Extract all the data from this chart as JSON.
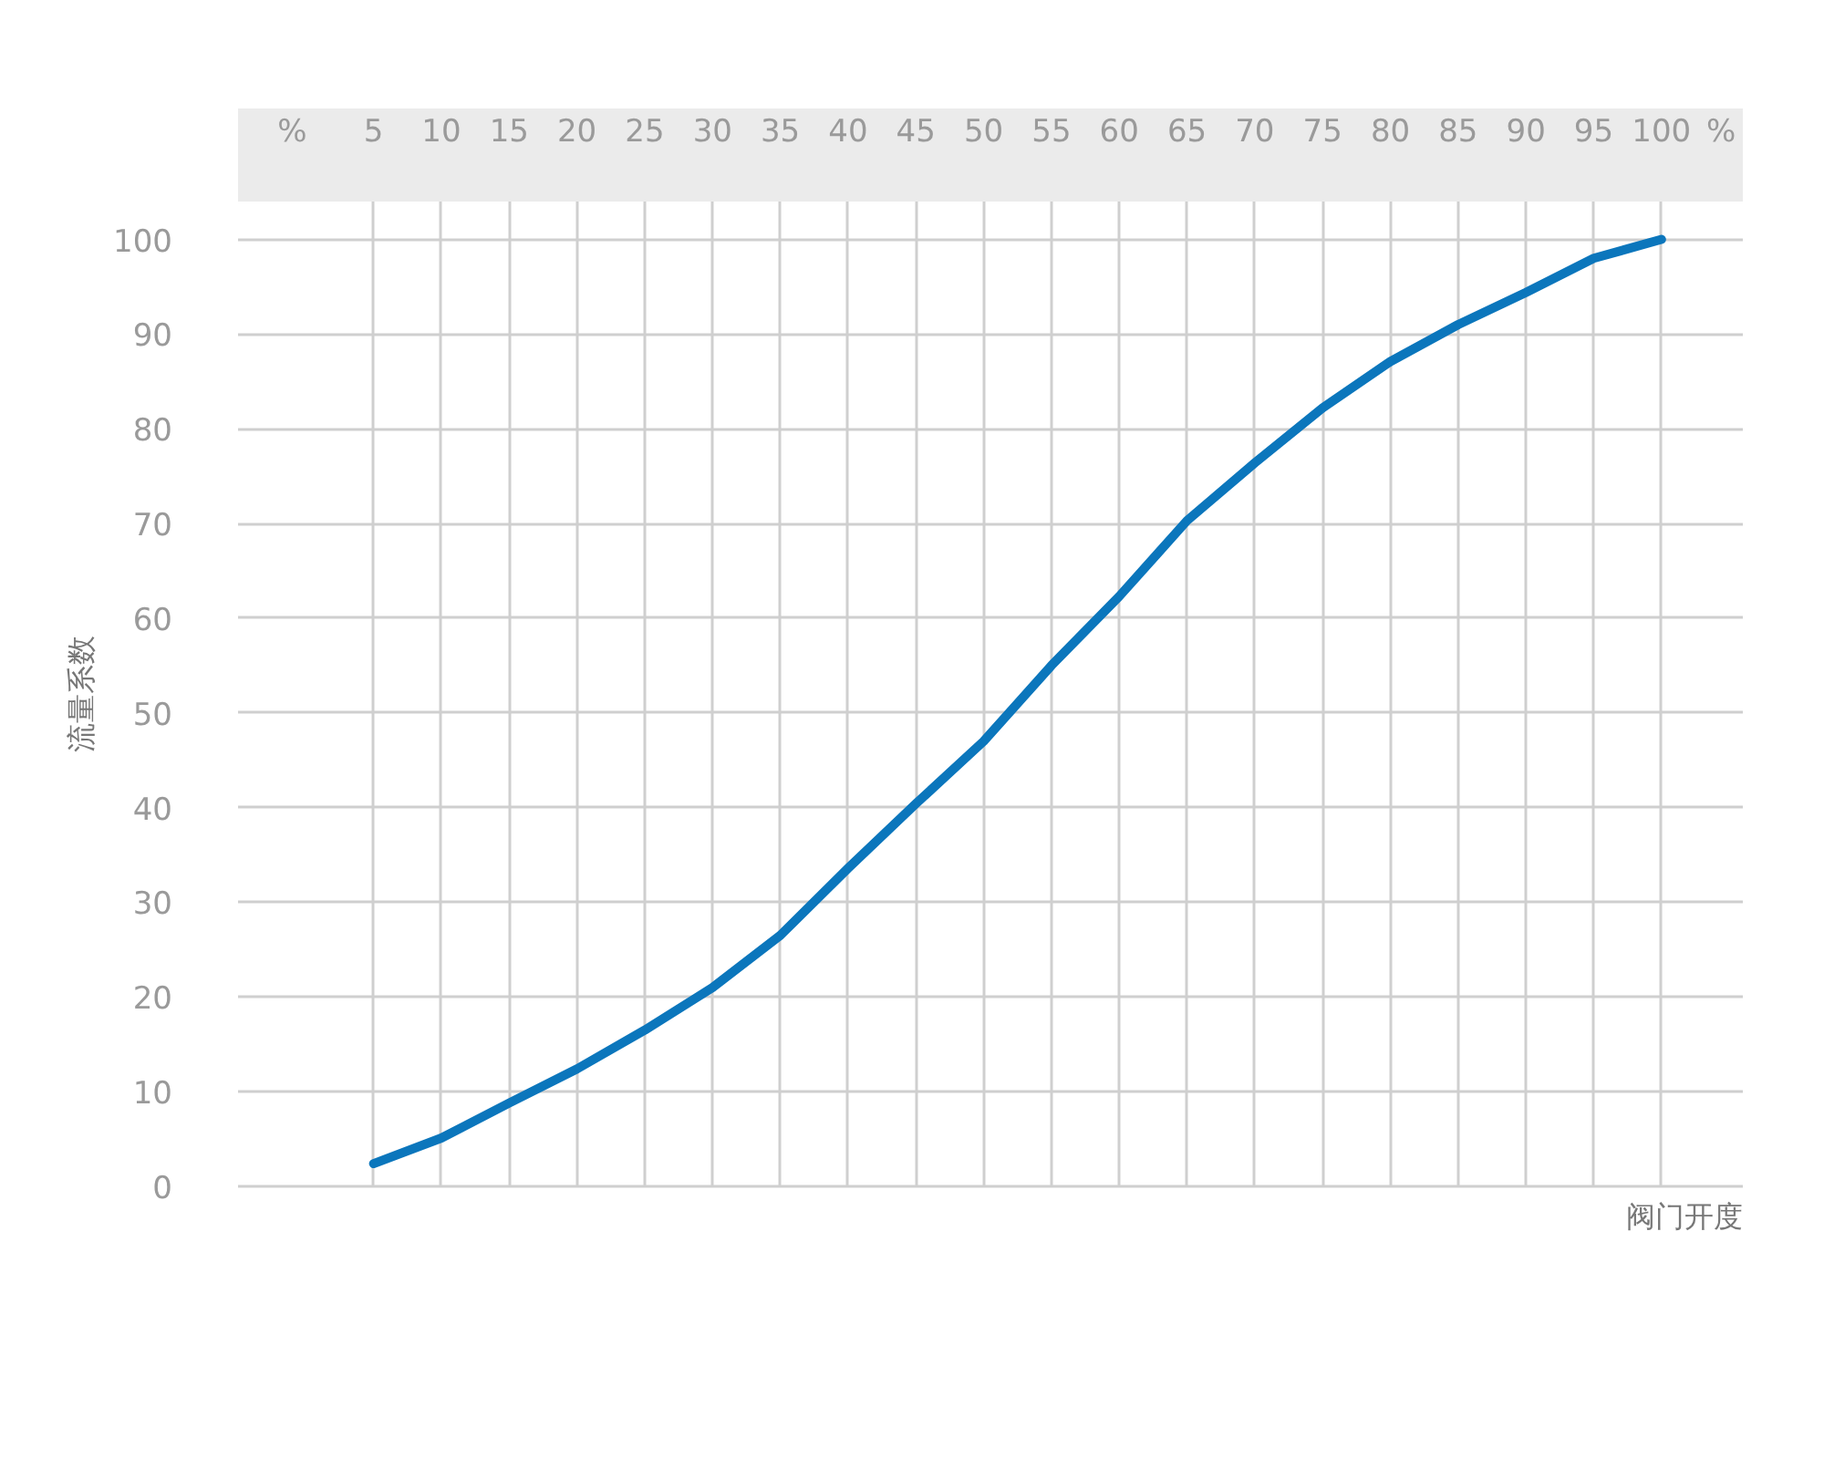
{
  "chart_data": {
    "type": "line",
    "xlabel": "阀门开度",
    "ylabel": "流量系数",
    "annotations": [
      "%",
      "%"
    ],
    "x": [
      5,
      10,
      15,
      20,
      25,
      30,
      35,
      40,
      45,
      50,
      55,
      60,
      65,
      70,
      75,
      80,
      85,
      90,
      95,
      100
    ],
    "series": [
      {
        "color": "#0b76bc",
        "values": [
          2.4,
          5.1,
          8.8,
          12.4,
          16.5,
          21,
          26.5,
          33.6,
          40.4,
          47,
          55,
          62.3,
          70.3,
          76.4,
          82.2,
          87.1,
          91,
          94.4,
          98,
          100
        ]
      }
    ],
    "xlim": [
      -5,
      106
    ],
    "ylim": [
      0,
      104
    ],
    "xticks": [
      5,
      10,
      15,
      20,
      25,
      30,
      35,
      40,
      45,
      50,
      55,
      60,
      65,
      70,
      75,
      80,
      85,
      90,
      95,
      100
    ],
    "yticks": [
      0,
      10,
      20,
      30,
      40,
      50,
      60,
      70,
      80,
      90,
      100
    ],
    "grid": true,
    "marker": "none",
    "line_style": "solid"
  }
}
